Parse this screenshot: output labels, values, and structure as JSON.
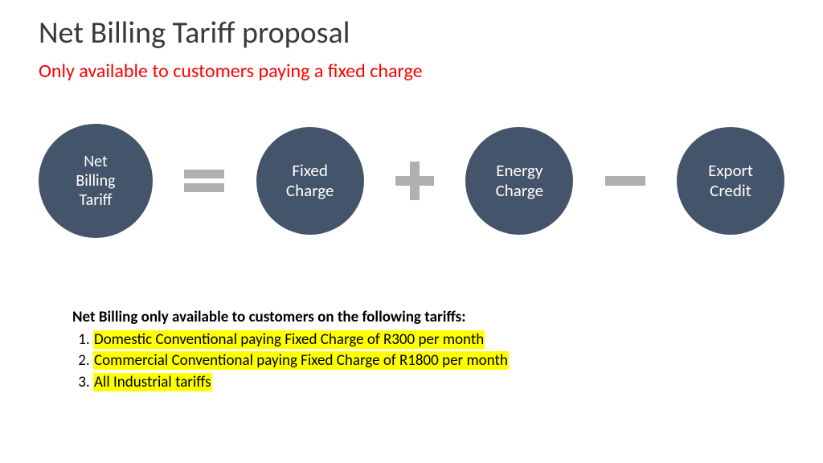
{
  "title": {
    "text": "Net Billing Tariff proposal",
    "color": "#3a3a3a",
    "fontsize": 38
  },
  "subtitle": {
    "text": "Only available to customers paying a fixed charge",
    "color": "#ff0000",
    "fontsize": 24
  },
  "equation": {
    "circle_fill": "#44546a",
    "circle_text_color": "#ffffff",
    "operator_color": "#b0b0b0",
    "nodes": [
      {
        "label": "Net\nBilling\nTariff",
        "diameter": 142,
        "fontsize": 20
      },
      {
        "label": "Fixed\nCharge",
        "diameter": 134,
        "fontsize": 21
      },
      {
        "label": "Energy\nCharge",
        "diameter": 134,
        "fontsize": 21
      },
      {
        "label": "Export\nCredit",
        "diameter": 134,
        "fontsize": 21
      }
    ],
    "operators": [
      "equals",
      "plus",
      "minus"
    ]
  },
  "footer": {
    "heading": "Net Billing only available to customers on the following tariffs:",
    "highlight_color": "#ffff00",
    "text_color": "#000000",
    "fontsize": 19,
    "items": [
      "Domestic Conventional paying Fixed Charge of R300 per month",
      "Commercial Conventional paying Fixed Charge of R1800 per month",
      "All Industrial tariffs"
    ]
  }
}
